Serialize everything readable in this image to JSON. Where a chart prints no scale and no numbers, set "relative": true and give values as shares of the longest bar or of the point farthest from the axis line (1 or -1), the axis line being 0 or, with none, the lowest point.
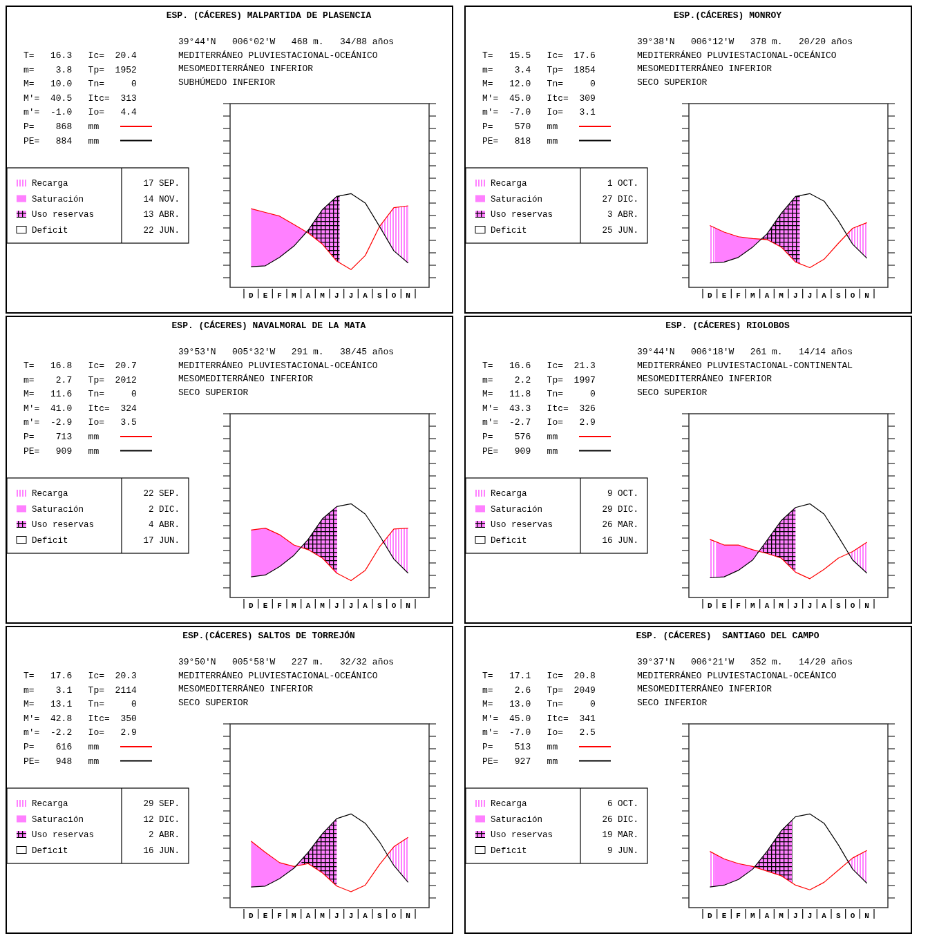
{
  "chart_data": [
    {
      "type": "line",
      "title": "ESP. (CÁCERES) MALPARTIDA DE PLASENCIA",
      "relative": true,
      "legend": "left",
      "categories": [
        "D",
        "E",
        "F",
        "M",
        "A",
        "M",
        "J",
        "J",
        "A",
        "S",
        "O",
        "N"
      ],
      "series": [
        {
          "name": "P=    868   mm",
          "color": "#ff0000",
          "values": [
            0.84,
            0.8,
            0.76,
            0.67,
            0.58,
            0.46,
            0.28,
            0.19,
            0.34,
            0.65,
            0.85,
            0.87
          ]
        },
        {
          "name": "PE=   884   mm",
          "color": "#000000",
          "values": [
            0.22,
            0.23,
            0.32,
            0.44,
            0.61,
            0.83,
            0.97,
            1.0,
            0.9,
            0.65,
            0.39,
            0.26
          ]
        }
      ],
      "annotations": [
        "39°44'N   006°02'W   468 m.   34/88 años",
        "MEDITERRÁNEO PLUVIESTACIONAL-OCEÁNICO",
        "MESOMEDITERRÁNEO INFERIOR",
        "SUBHÚMEDO INFERIOR",
        "T=   16.3   Ic=  20.4",
        "m=    3.8   Tp=  1952",
        "M=   10.0   Tn=     0",
        "M'=  40.5   Itc=  313",
        "m'=  -1.0   Io=   4.4",
        "Recarga",
        "Saturación",
        "Uso reservas",
        "Deficit",
        "17 SEP.",
        "14 NOV.",
        "13 ABR.",
        "22 JUN."
      ]
    },
    {
      "type": "line",
      "title": "ESP.(CÁCERES) MONROY",
      "relative": true,
      "legend": "left",
      "categories": [
        "D",
        "E",
        "F",
        "M",
        "A",
        "M",
        "J",
        "J",
        "A",
        "S",
        "O",
        "N"
      ],
      "series": [
        {
          "name": "P=    570   mm",
          "color": "#ff0000",
          "values": [
            0.66,
            0.59,
            0.54,
            0.52,
            0.51,
            0.43,
            0.27,
            0.21,
            0.3,
            0.47,
            0.63,
            0.69
          ]
        },
        {
          "name": "PE=   818   mm",
          "color": "#000000",
          "values": [
            0.26,
            0.27,
            0.32,
            0.43,
            0.57,
            0.79,
            0.97,
            1.0,
            0.92,
            0.71,
            0.46,
            0.31
          ]
        }
      ],
      "annotations": [
        "39°38'N   006°12'W   378 m.   20/20 años",
        "MEDITERRÁNEO PLUVIESTACIONAL-OCEÁNICO",
        "MESOMEDITERRÁNEO INFERIOR",
        "SECO SUPERIOR",
        "T=   15.5   Ic=  17.6",
        "m=    3.4   Tp=  1854",
        "M=   12.0   Tn=     0",
        "M'=  45.0   Itc=  309",
        "m'=  -7.0   Io=   3.1",
        "Recarga",
        "Saturación",
        "Uso reservas",
        "Deficit",
        "1 OCT.",
        "27 DIC.",
        "3 ABR.",
        "25 JUN."
      ]
    },
    {
      "type": "line",
      "title": "ESP. (CÁCERES) NAVALMORAL DE LA MATA",
      "relative": true,
      "legend": "left",
      "categories": [
        "D",
        "E",
        "F",
        "M",
        "A",
        "M",
        "J",
        "J",
        "A",
        "S",
        "O",
        "N"
      ],
      "series": [
        {
          "name": "P=    713   mm",
          "color": "#ff0000",
          "values": [
            0.72,
            0.74,
            0.67,
            0.56,
            0.51,
            0.42,
            0.26,
            0.18,
            0.29,
            0.54,
            0.73,
            0.74
          ]
        },
        {
          "name": "PE=   909   mm",
          "color": "#000000",
          "values": [
            0.22,
            0.24,
            0.33,
            0.45,
            0.62,
            0.84,
            0.97,
            1.0,
            0.89,
            0.66,
            0.41,
            0.26
          ]
        }
      ],
      "annotations": [
        "39°53'N   005°32'W   291 m.   38/45 años",
        "MEDITERRÁNEO PLUVIESTACIONAL-OCEÁNICO",
        "MESOMEDITERRÁNEO INFERIOR",
        "SECO SUPERIOR",
        "T=   16.8   Ic=  20.7",
        "m=    2.7   Tp=  2012",
        "M=   11.6   Tn=     0",
        "M'=  41.0   Itc=  324",
        "m'=  -2.9   Io=   3.5",
        "Recarga",
        "Saturación",
        "Uso reservas",
        "Deficit",
        "22 SEP.",
        "2 DIC.",
        "4 ABR.",
        "17 JUN."
      ]
    },
    {
      "type": "line",
      "title": "ESP. (CÁCERES) RIOLOBOS",
      "relative": true,
      "legend": "left",
      "categories": [
        "D",
        "E",
        "F",
        "M",
        "A",
        "M",
        "J",
        "J",
        "A",
        "S",
        "O",
        "N"
      ],
      "series": [
        {
          "name": "P=    576   mm",
          "color": "#ff0000",
          "values": [
            0.62,
            0.56,
            0.56,
            0.51,
            0.47,
            0.42,
            0.27,
            0.2,
            0.3,
            0.42,
            0.49,
            0.59
          ]
        },
        {
          "name": "PE=   909   mm",
          "color": "#000000",
          "values": [
            0.21,
            0.22,
            0.29,
            0.4,
            0.61,
            0.82,
            0.96,
            1.0,
            0.89,
            0.65,
            0.4,
            0.26
          ]
        }
      ],
      "annotations": [
        "39°44'N   006°18'W   261 m.   14/14 años",
        "MEDITERRÁNEO PLUVIESTACIONAL-CONTINENTAL",
        "MESOMEDITERRÁNEO INFERIOR",
        "SECO SUPERIOR",
        "T=   16.6   Ic=  21.3",
        "m=    2.2   Tp=  1997",
        "M=   11.8   Tn=     0",
        "M'=  43.3   Itc=  326",
        "m'=  -2.7   Io=   2.9",
        "Recarga",
        "Saturación",
        "Uso reservas",
        "Deficit",
        "9 OCT.",
        "29 DIC.",
        "26 MAR.",
        "16 JUN."
      ]
    },
    {
      "type": "line",
      "title": "ESP.(CÁCERES) SALTOS DE TORREJÓN",
      "relative": true,
      "legend": "left",
      "categories": [
        "D",
        "E",
        "F",
        "M",
        "A",
        "M",
        "J",
        "J",
        "A",
        "S",
        "O",
        "N"
      ],
      "series": [
        {
          "name": "P=    616   mm",
          "color": "#ff0000",
          "values": [
            0.71,
            0.59,
            0.48,
            0.44,
            0.47,
            0.37,
            0.23,
            0.17,
            0.24,
            0.46,
            0.65,
            0.75
          ]
        },
        {
          "name": "PE=   948   mm",
          "color": "#000000",
          "values": [
            0.22,
            0.23,
            0.31,
            0.42,
            0.59,
            0.79,
            0.95,
            1.0,
            0.9,
            0.7,
            0.45,
            0.27
          ]
        }
      ],
      "annotations": [
        "39°50'N   005°58'W   227 m.   32/32 años",
        "MEDITERRÁNEO PLUVIESTACIONAL-OCEÁNICO",
        "MESOMEDITERRÁNEO INFERIOR",
        "SECO SUPERIOR",
        "T=   17.6   Ic=  20.3",
        "m=    3.1   Tp=  2114",
        "M=   13.1   Tn=     0",
        "M'=  42.8   Itc=  350",
        "m'=  -2.2   Io=   2.9",
        "Recarga",
        "Saturación",
        "Uso reservas",
        "Deficit",
        "29 SEP.",
        "12 DIC.",
        "2 ABR.",
        "16 JUN."
      ]
    },
    {
      "type": "line",
      "title": "ESP. (CÁCERES)  SANTIAGO DEL CAMPO",
      "relative": true,
      "legend": "left",
      "categories": [
        "D",
        "E",
        "F",
        "M",
        "A",
        "M",
        "J",
        "J",
        "A",
        "S",
        "O",
        "N"
      ],
      "series": [
        {
          "name": "P=    513   mm",
          "color": "#ff0000",
          "values": [
            0.6,
            0.52,
            0.47,
            0.44,
            0.39,
            0.34,
            0.24,
            0.19,
            0.27,
            0.4,
            0.53,
            0.61
          ]
        },
        {
          "name": "PE=   927   mm",
          "color": "#000000",
          "values": [
            0.22,
            0.24,
            0.3,
            0.41,
            0.6,
            0.82,
            0.97,
            1.0,
            0.9,
            0.67,
            0.41,
            0.26
          ]
        }
      ],
      "annotations": [
        "39°37'N   006°21'W   352 m.   14/20 años",
        "MEDITERRÁNEO PLUVIESTACIONAL-OCEÁNICO",
        "MESOMEDITERRÁNEO INFERIOR",
        "SECO INFERIOR",
        "T=   17.1   Ic=  20.8",
        "m=    2.6   Tp=  2049",
        "M=   13.0   Tn=     0",
        "M'=  45.0   Itc=  341",
        "m'=  -7.0   Io=   2.5",
        "Recarga",
        "Saturación",
        "Uso reservas",
        "Deficit",
        "6 OCT.",
        "26 DIC.",
        "19 MAR.",
        "9 JUN."
      ]
    }
  ]
}
